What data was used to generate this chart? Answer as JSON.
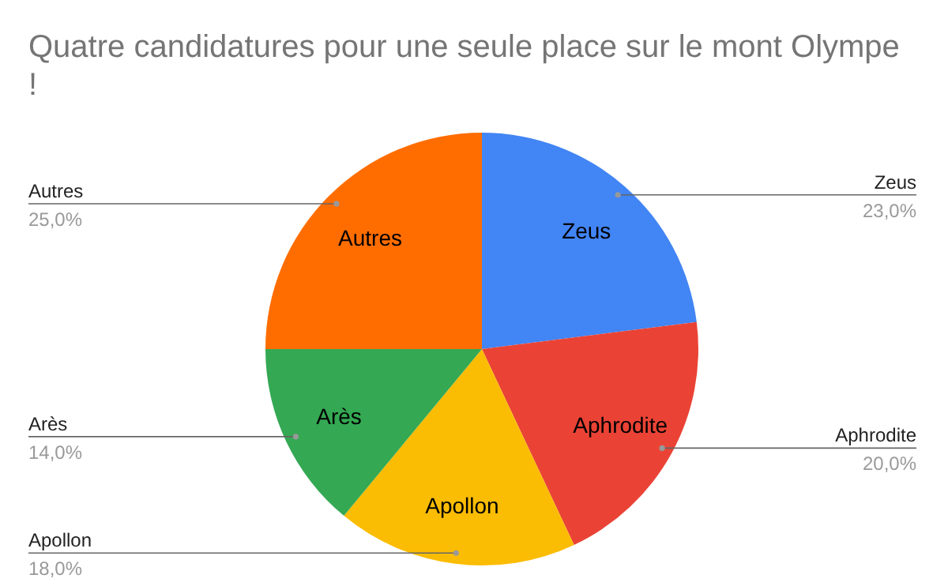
{
  "chart_data": {
    "type": "pie",
    "title": "Quatre candidatures pour une seule place sur le mont Olympe !",
    "categories": [
      "Zeus",
      "Aphrodite",
      "Apollon",
      "Arès",
      "Autres"
    ],
    "values": [
      23,
      20,
      18,
      14,
      25
    ],
    "value_labels": [
      "23,0%",
      "20,0%",
      "18,0%",
      "14,0%",
      "25,0%"
    ],
    "colors": [
      "#4285f4",
      "#ea4335",
      "#fbbc04",
      "#34a853",
      "#ff6d01"
    ],
    "legend": false
  }
}
